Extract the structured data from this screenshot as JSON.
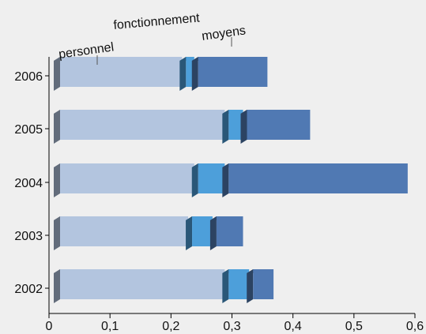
{
  "chart_data": {
    "type": "bar",
    "stacked": true,
    "orientation": "horizontal",
    "three_d": true,
    "categories": [
      "2006",
      "2005",
      "2004",
      "2003",
      "2002"
    ],
    "series": [
      {
        "name": "personnel",
        "values": [
          0.2,
          0.27,
          0.22,
          0.21,
          0.27
        ],
        "color": "#b3c5df"
      },
      {
        "name": "fonctionnement",
        "values": [
          0.02,
          0.03,
          0.05,
          0.04,
          0.04
        ],
        "color": "#4d9fda"
      },
      {
        "name": "moyens",
        "values": [
          0.12,
          0.11,
          0.3,
          0.05,
          0.04
        ],
        "color": "#5079b3"
      }
    ],
    "x_ticks": [
      "0",
      "0,1",
      "0,2",
      "0,3",
      "0,4",
      "0,5",
      "0,6"
    ],
    "xlim": [
      0,
      0.6
    ],
    "grid": false,
    "legend": "labels above top bar"
  },
  "colors": {
    "background": "#efefef",
    "axis": "#000000"
  }
}
